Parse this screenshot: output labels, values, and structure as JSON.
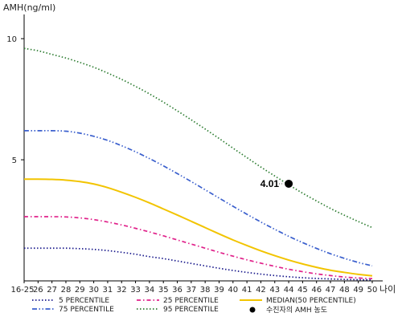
{
  "chart_data": {
    "type": "line",
    "ylabel": "AMH(ng/ml)",
    "xlabel": "나이",
    "ylim": [
      0,
      11
    ],
    "yticks": [
      5,
      10
    ],
    "x_categories": [
      "16-25",
      "26",
      "27",
      "28",
      "29",
      "30",
      "31",
      "32",
      "33",
      "34",
      "35",
      "36",
      "37",
      "38",
      "39",
      "40",
      "41",
      "42",
      "43",
      "44",
      "45",
      "46",
      "47",
      "48",
      "49",
      "50"
    ],
    "series": [
      {
        "name": "5 PERCENTILE",
        "color": "#1a1a8c",
        "dash": "dot",
        "values": [
          1.35,
          1.35,
          1.35,
          1.35,
          1.33,
          1.3,
          1.25,
          1.18,
          1.1,
          1.0,
          0.92,
          0.82,
          0.72,
          0.62,
          0.52,
          0.43,
          0.35,
          0.28,
          0.22,
          0.17,
          0.13,
          0.1,
          0.08,
          0.06,
          0.05,
          0.04
        ]
      },
      {
        "name": "25 PERCENTILE",
        "color": "#e0218a",
        "dash": "dashdot",
        "values": [
          2.65,
          2.65,
          2.65,
          2.64,
          2.6,
          2.53,
          2.43,
          2.31,
          2.17,
          2.02,
          1.86,
          1.69,
          1.52,
          1.35,
          1.18,
          1.02,
          0.87,
          0.73,
          0.6,
          0.48,
          0.38,
          0.29,
          0.22,
          0.16,
          0.12,
          0.09
        ]
      },
      {
        "name": "MEDIAN(50 PERCENTILE)",
        "color": "#f2c400",
        "dash": "solid",
        "values": [
          4.2,
          4.2,
          4.19,
          4.16,
          4.1,
          4.0,
          3.85,
          3.66,
          3.45,
          3.22,
          2.97,
          2.72,
          2.46,
          2.2,
          1.94,
          1.69,
          1.46,
          1.24,
          1.04,
          0.86,
          0.7,
          0.56,
          0.44,
          0.35,
          0.27,
          0.21
        ]
      },
      {
        "name": "75 PERCENTILE",
        "color": "#3a5fcd",
        "dash": "dashdotdot",
        "values": [
          6.2,
          6.2,
          6.2,
          6.18,
          6.1,
          5.97,
          5.8,
          5.58,
          5.33,
          5.05,
          4.75,
          4.43,
          4.1,
          3.76,
          3.42,
          3.08,
          2.75,
          2.43,
          2.13,
          1.84,
          1.58,
          1.34,
          1.12,
          0.93,
          0.76,
          0.62
        ]
      },
      {
        "name": "95 PERCENTILE",
        "color": "#2e7d32",
        "dash": "dot",
        "values": [
          9.6,
          9.5,
          9.35,
          9.2,
          9.02,
          8.82,
          8.58,
          8.32,
          8.03,
          7.72,
          7.38,
          7.02,
          6.65,
          6.27,
          5.88,
          5.48,
          5.09,
          4.7,
          4.33,
          3.97,
          3.62,
          3.3,
          2.99,
          2.71,
          2.45,
          2.2
        ]
      }
    ],
    "patient_point": {
      "legend_label": "수진자의 AMH 농도",
      "x": "44",
      "y": 4.01,
      "label": "4.01"
    },
    "legend_position": "bottom"
  }
}
